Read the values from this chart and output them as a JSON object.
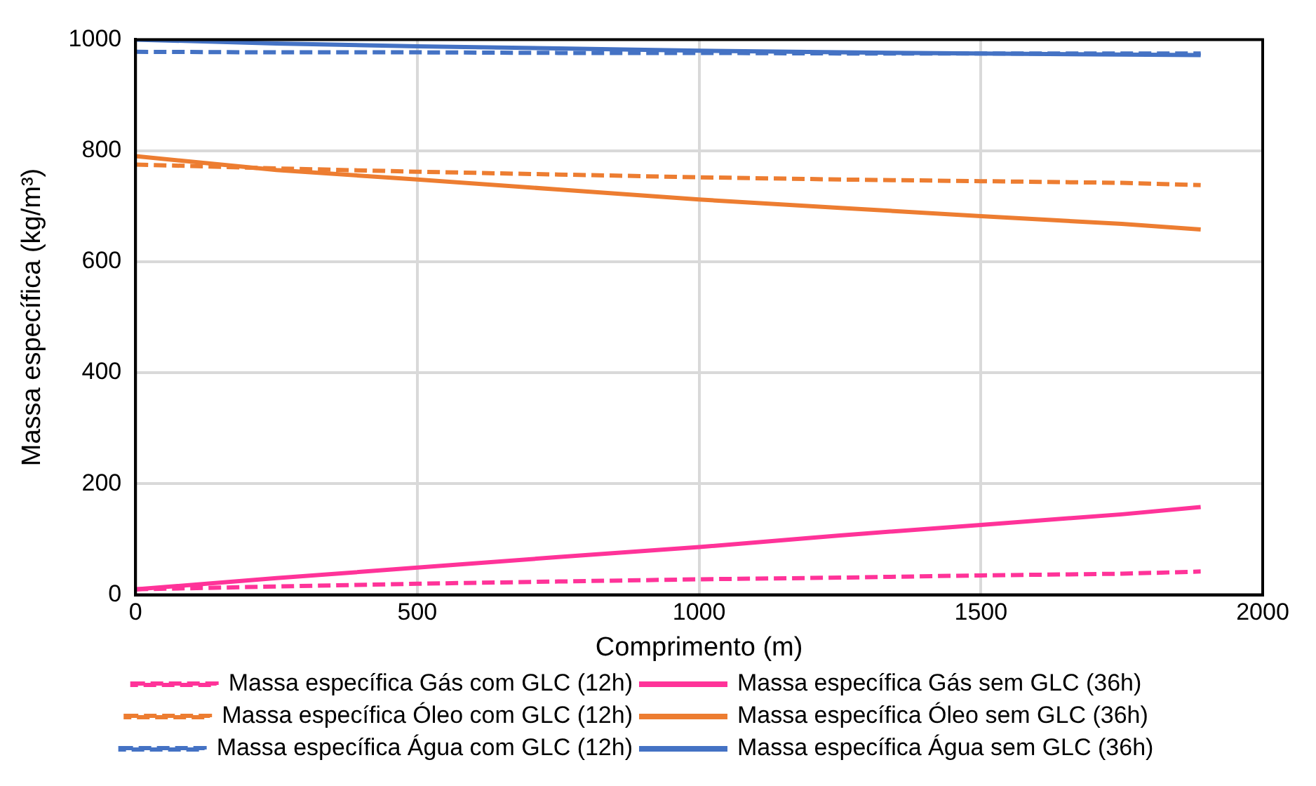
{
  "chart_data": {
    "type": "line",
    "xlabel": "Comprimento (m)",
    "ylabel": "Massa específica (kg/m³)",
    "x": [
      0,
      250,
      500,
      750,
      1000,
      1250,
      1500,
      1750,
      1890
    ],
    "xlim": [
      0,
      2000
    ],
    "xticks": [
      0,
      500,
      1000,
      1500,
      2000
    ],
    "ylim": [
      0,
      1000
    ],
    "yticks": [
      0,
      200,
      400,
      600,
      800,
      1000
    ],
    "grid": true,
    "legend": "bottom",
    "marker": "none",
    "series": [
      {
        "name": "Massa específica Gás com GLC (12h)",
        "color": "#ff3399",
        "line_style": "dashed",
        "values": [
          10,
          15,
          20,
          24,
          28,
          31,
          35,
          38,
          42
        ]
      },
      {
        "name": "Massa específica Gás sem GLC (36h)",
        "color": "#ff3399",
        "line_style": "solid",
        "values": [
          10,
          30,
          49,
          68,
          86,
          107,
          126,
          145,
          158
        ]
      },
      {
        "name": "Massa específica Óleo com GLC (12h)",
        "color": "#ed7d31",
        "line_style": "dashed",
        "values": [
          775,
          768,
          762,
          757,
          752,
          748,
          745,
          742,
          738
        ]
      },
      {
        "name": "Massa específica Óleo sem GLC (36h)",
        "color": "#ed7d31",
        "line_style": "solid",
        "values": [
          790,
          765,
          748,
          730,
          712,
          697,
          682,
          668,
          658
        ]
      },
      {
        "name": "Massa específica Água com GLC (12h)",
        "color": "#4472c4",
        "line_style": "dashed",
        "values": [
          978,
          977,
          977,
          976,
          976,
          975,
          975,
          975,
          975
        ]
      },
      {
        "name": "Massa específica Água sem GLC (36h)",
        "color": "#4472c4",
        "line_style": "solid",
        "values": [
          1000,
          993,
          988,
          984,
          980,
          977,
          975,
          973,
          972
        ]
      }
    ]
  }
}
